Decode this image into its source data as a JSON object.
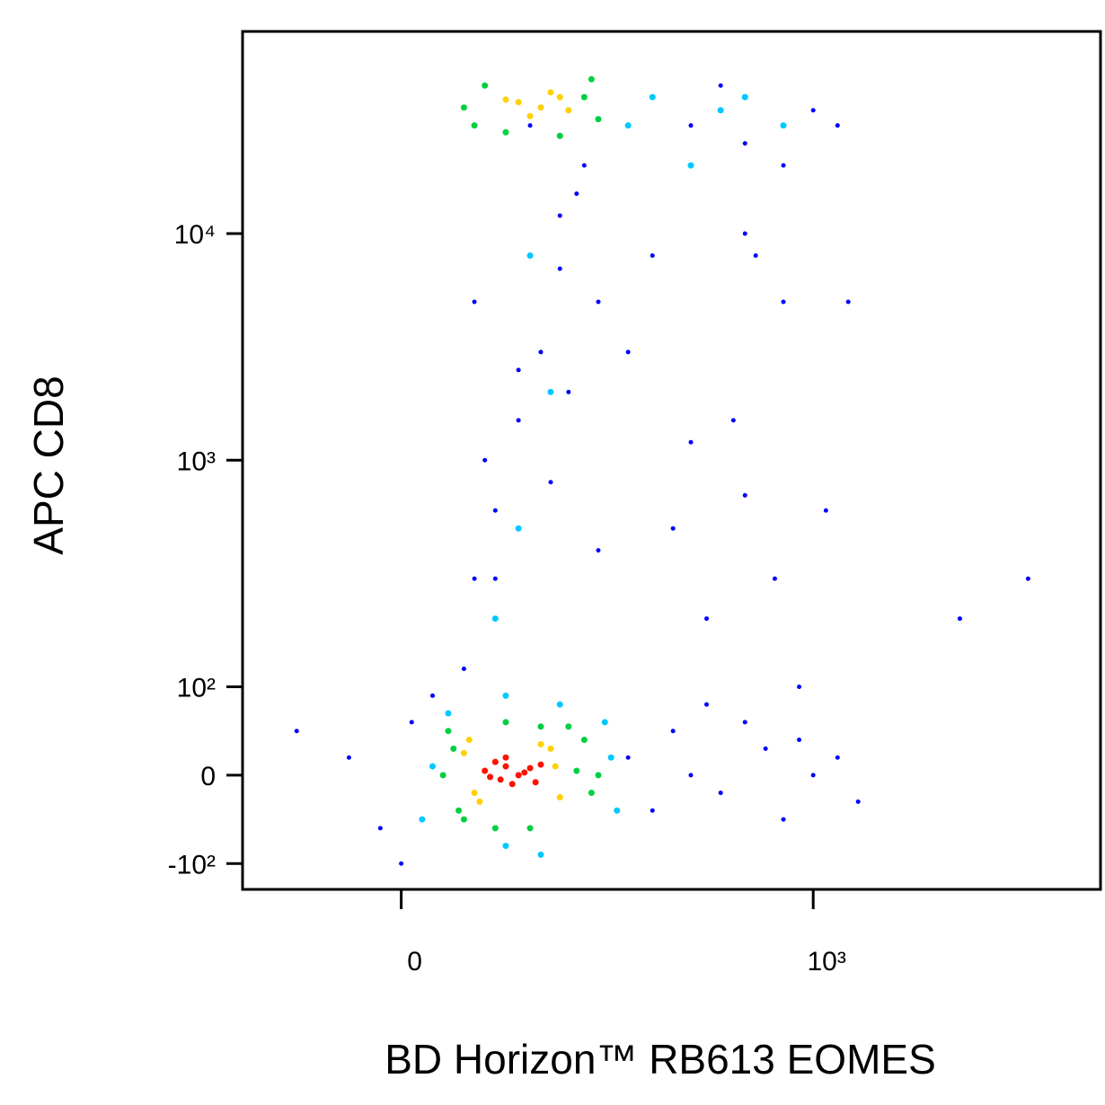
{
  "chart_data": {
    "type": "scatter",
    "xlabel": "BD Horizon™ RB613 EOMES",
    "ylabel": "APC CD8",
    "xscale": "symlog",
    "xlinthresh": 100,
    "xlinscale": 0.34,
    "yscale": "symlog",
    "ylinthresh": 100,
    "ylinscale": 0.39,
    "xlim": [
      -150,
      8600
    ],
    "ylim": [
      -130,
      78000
    ],
    "xticks": [
      0,
      {
        "value": 1000,
        "label": "10³"
      }
    ],
    "yticks": [
      {
        "value": -100,
        "label": "-10²"
      },
      0,
      {
        "value": 100,
        "label": "10²"
      },
      {
        "value": 1000,
        "label": "10³"
      },
      {
        "value": 10000,
        "label": "10⁴"
      }
    ],
    "series": [
      {
        "color": "#0000ff",
        "x": [
          -50,
          -20,
          0,
          10,
          30,
          60,
          70,
          90,
          110,
          130,
          150,
          170,
          250,
          300,
          350,
          400,
          450,
          500,
          600,
          700,
          800,
          900,
          1000,
          1200,
          1400,
          300,
          400,
          500,
          600,
          800,
          1000,
          1200,
          70,
          80,
          90,
          110,
          200,
          300,
          600,
          -100,
          150,
          250,
          350,
          450,
          550,
          650,
          750,
          900,
          1100,
          1300,
          120,
          140,
          160,
          180,
          200,
          400,
          600,
          800,
          3000,
          5000
        ],
        "y": [
          20,
          -60,
          -100,
          60,
          90,
          120,
          300,
          600,
          1500,
          3000,
          7000,
          15000,
          20,
          -40,
          50,
          0,
          80,
          -20,
          60,
          30,
          -50,
          40,
          0,
          20,
          -30,
          40000,
          30000,
          45000,
          25000,
          20000,
          35000,
          30000,
          5000,
          1000,
          300,
          2500,
          5000,
          8000,
          700,
          50,
          12000,
          3000,
          500,
          200,
          1500,
          8000,
          300,
          100,
          600,
          5000,
          30000,
          800,
          2000,
          20000,
          400,
          1200,
          10000,
          5000,
          200,
          300
        ]
      },
      {
        "color": "#00c8ff",
        "x": [
          30,
          20,
          220,
          230,
          45,
          210,
          150,
          100,
          90,
          110,
          140,
          120,
          300,
          500,
          400,
          600,
          130,
          100,
          250,
          800
        ],
        "y": [
          10,
          -50,
          20,
          -40,
          70,
          60,
          80,
          -80,
          200,
          500,
          2000,
          8000,
          40000,
          35000,
          20000,
          40000,
          -90,
          90,
          30000,
          30000
        ]
      },
      {
        "color": "#00d040",
        "x": [
          40,
          50,
          170,
          190,
          55,
          180,
          60,
          45,
          160,
          200,
          120,
          90,
          100,
          130,
          60,
          80,
          180,
          200,
          70,
          190,
          100,
          150
        ],
        "y": [
          0,
          30,
          5,
          -20,
          -40,
          40,
          -50,
          50,
          55,
          0,
          -60,
          -60,
          60,
          55,
          36000,
          45000,
          40000,
          32000,
          30000,
          48000,
          28000,
          27000
        ]
      },
      {
        "color": "#ffd000",
        "x": [
          110,
          130,
          150,
          120,
          140,
          100,
          160,
          60,
          70,
          140,
          150,
          75,
          145,
          130,
          65
        ],
        "y": [
          38000,
          36000,
          40000,
          33000,
          42000,
          39000,
          35000,
          25,
          -20,
          30,
          -25,
          -30,
          10,
          35,
          40
        ]
      },
      {
        "color": "#ff1000",
        "x": [
          80,
          95,
          100,
          110,
          120,
          90,
          105,
          115,
          85,
          100,
          125,
          130
        ],
        "y": [
          5,
          -5,
          10,
          0,
          8,
          15,
          -10,
          3,
          -2,
          20,
          -8,
          12
        ]
      }
    ]
  }
}
